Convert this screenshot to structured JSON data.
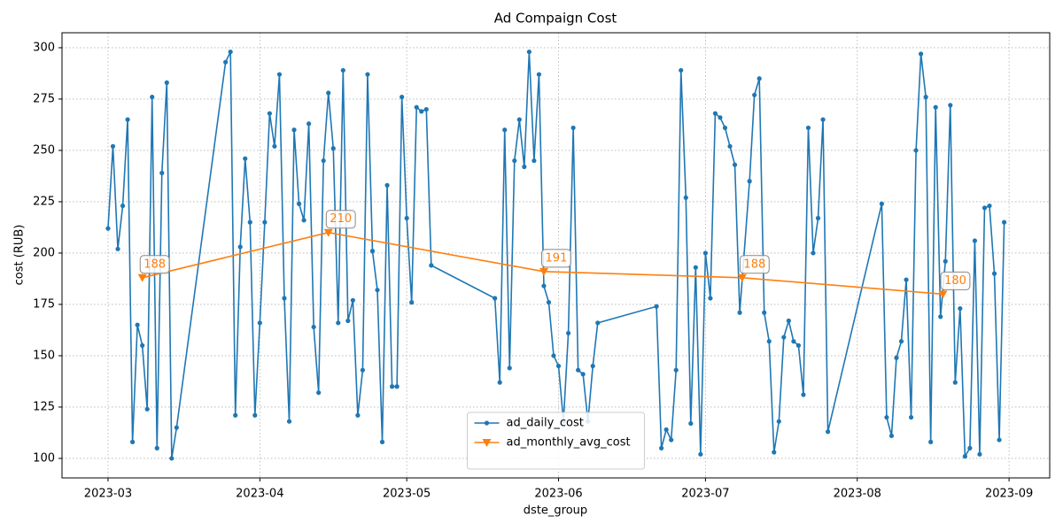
{
  "chart_data": {
    "type": "line",
    "title": "Ad Compaign Cost",
    "xlabel": "dste_group",
    "ylabel": "cost (RUB)",
    "xlim": [
      -9.4,
      192.3
    ],
    "ylim": [
      90.5,
      307.3
    ],
    "xticks": [
      {
        "value": 0,
        "label": "2023-03"
      },
      {
        "value": 31,
        "label": "2023-04"
      },
      {
        "value": 61,
        "label": "2023-05"
      },
      {
        "value": 92,
        "label": "2023-06"
      },
      {
        "value": 122,
        "label": "2023-07"
      },
      {
        "value": 153,
        "label": "2023-08"
      },
      {
        "value": 184,
        "label": "2023-09"
      }
    ],
    "yticks": [
      100,
      125,
      150,
      175,
      200,
      225,
      250,
      275,
      300
    ],
    "grid": true,
    "legend": "lower center",
    "series": [
      {
        "name": "ad_daily_cost",
        "color": "#1f77b4",
        "marker": "circle",
        "x": [
          0,
          1,
          2,
          3,
          4,
          5,
          6,
          7,
          8,
          9,
          10,
          11,
          12,
          13,
          14,
          24,
          25,
          26,
          27,
          28,
          29,
          30,
          31,
          32,
          33,
          34,
          35,
          36,
          37,
          38,
          39,
          40,
          41,
          42,
          43,
          44,
          45,
          46,
          47,
          48,
          49,
          50,
          51,
          52,
          53,
          54,
          55,
          56,
          57,
          58,
          59,
          60,
          61,
          62,
          63,
          64,
          65,
          66,
          79,
          80,
          81,
          82,
          83,
          84,
          85,
          86,
          87,
          88,
          89,
          90,
          91,
          92,
          93,
          94,
          95,
          96,
          97,
          98,
          99,
          100,
          112,
          113,
          114,
          115,
          116,
          117,
          118,
          119,
          120,
          121,
          122,
          123,
          124,
          125,
          126,
          127,
          128,
          129,
          131,
          132,
          133,
          134,
          135,
          136,
          137,
          138,
          139,
          140,
          141,
          142,
          143,
          144,
          145,
          146,
          147,
          158,
          159,
          160,
          161,
          162,
          163,
          164,
          165,
          166,
          167,
          168,
          169,
          170,
          171,
          172,
          173,
          174,
          175,
          176,
          177,
          178,
          179,
          180,
          181,
          182,
          183
        ],
        "values": [
          212,
          252,
          202,
          223,
          265,
          108,
          165,
          155,
          124,
          276,
          105,
          239,
          283,
          100,
          115,
          293,
          298,
          121,
          203,
          246,
          215,
          121,
          166,
          215,
          268,
          252,
          287,
          178,
          118,
          260,
          224,
          216,
          263,
          164,
          132,
          245,
          278,
          251,
          166,
          289,
          167,
          177,
          121,
          143,
          287,
          201,
          182,
          108,
          233,
          135,
          135,
          276,
          217,
          176,
          271,
          269,
          270,
          194,
          178,
          137,
          260,
          144,
          245,
          265,
          242,
          298,
          245,
          287,
          184,
          176,
          150,
          145,
          118,
          161,
          261,
          143,
          141,
          118,
          145,
          166,
          174,
          105,
          114,
          109,
          143,
          289,
          227,
          117,
          193,
          102,
          200,
          178,
          268,
          266,
          261,
          252,
          243,
          171,
          235,
          277,
          285,
          171,
          157,
          103,
          118,
          159,
          167,
          157,
          155,
          131,
          261,
          200,
          217,
          265,
          113,
          224,
          120,
          111,
          149,
          157,
          187,
          120,
          250,
          297,
          276,
          108,
          271,
          169,
          196,
          272,
          137,
          173,
          101,
          105,
          206,
          102,
          222,
          223,
          190,
          109,
          215
        ]
      },
      {
        "name": "ad_monthly_avg_cost",
        "color": "#ff7f0e",
        "marker": "triangle-down",
        "annotate": true,
        "x": [
          7,
          45,
          89,
          129.5,
          170.5
        ],
        "values": [
          188,
          210,
          191,
          188,
          180
        ]
      }
    ]
  }
}
